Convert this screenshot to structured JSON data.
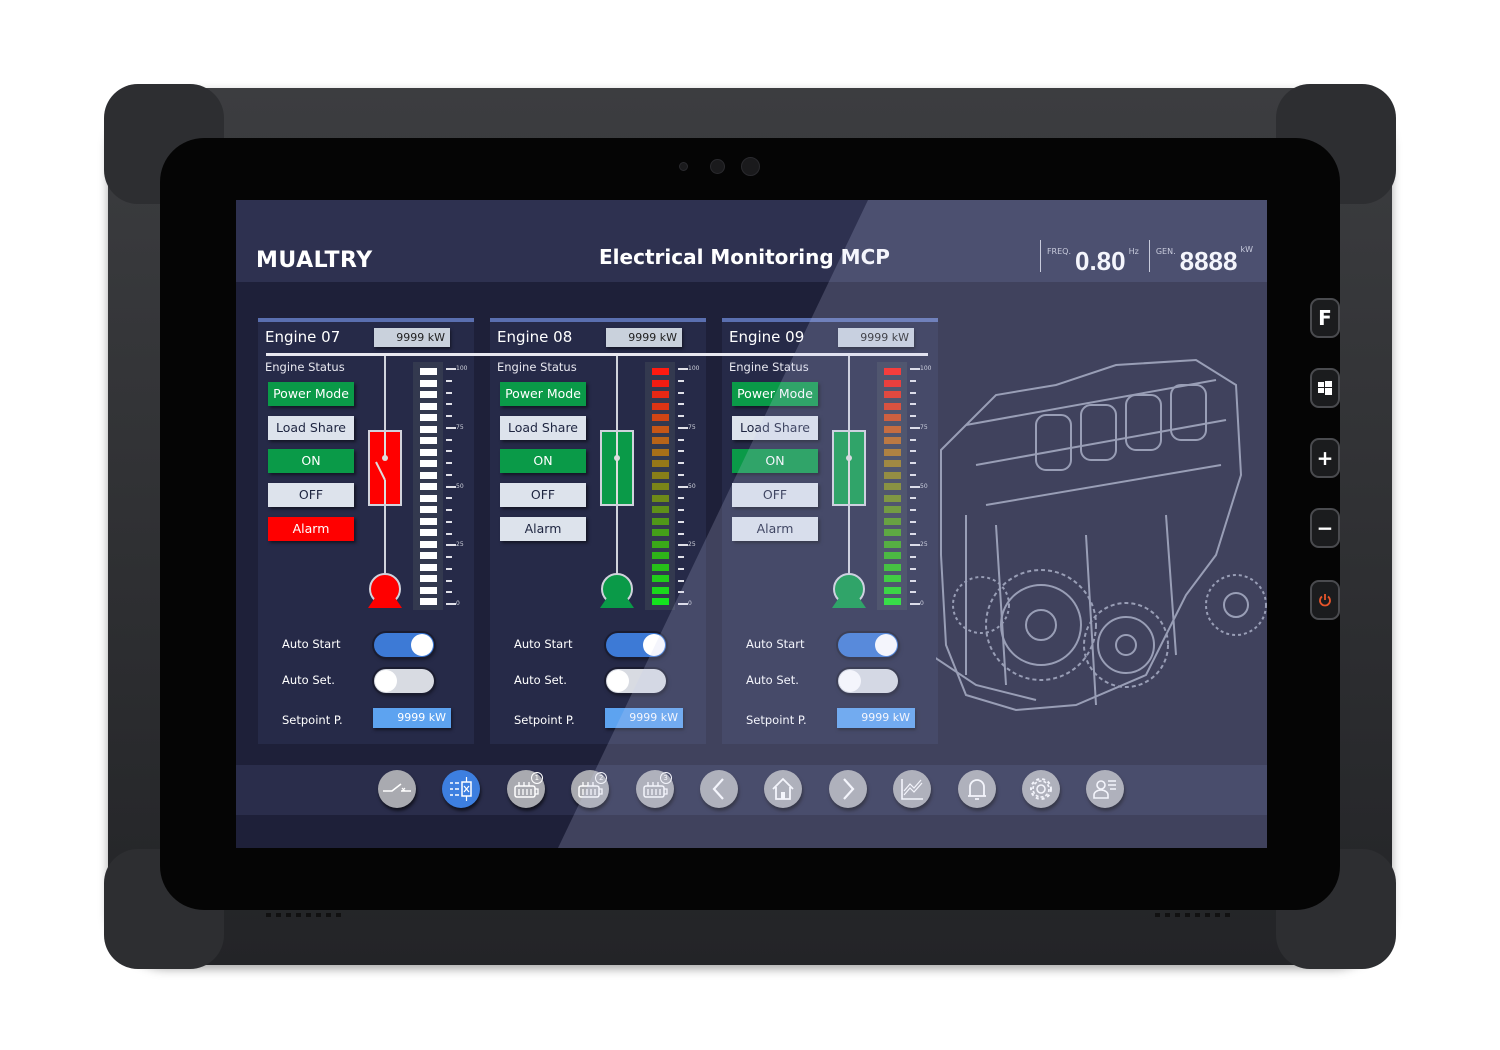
{
  "hardware": {
    "side_buttons": [
      {
        "name": "function",
        "label": "F"
      },
      {
        "name": "windows",
        "label": ""
      },
      {
        "name": "volume-up",
        "label": "+"
      },
      {
        "name": "volume-down",
        "label": "−"
      },
      {
        "name": "power",
        "label": ""
      }
    ],
    "power_color": "#e8552a"
  },
  "header": {
    "brand": "MUALTRY",
    "title": "Electrical Monitoring MCP",
    "freq_label": "FREQ.",
    "freq_value": "0.80",
    "freq_unit": "Hz",
    "gen_label": "GEN.",
    "gen_value": "8888",
    "gen_unit": "kW"
  },
  "engines": [
    {
      "name": "Engine 07",
      "power": "9999  kW",
      "status_label": "Engine Status",
      "buttons": [
        {
          "label": "Power Mode",
          "state": "active"
        },
        {
          "label": "Load Share",
          "state": "idle"
        },
        {
          "label": "ON",
          "state": "active"
        },
        {
          "label": "OFF",
          "state": "idle"
        },
        {
          "label": "Alarm",
          "state": "alarm"
        }
      ],
      "breaker": "open",
      "color": "#ff0000",
      "bar_style": "white",
      "auto_start_label": "Auto Start",
      "auto_start": true,
      "auto_set_label": "Auto Set.",
      "auto_set": false,
      "setpoint_label": "Setpoint P.",
      "setpoint": "9999  kW"
    },
    {
      "name": "Engine 08",
      "power": "9999  kW",
      "status_label": "Engine Status",
      "buttons": [
        {
          "label": "Power Mode",
          "state": "active"
        },
        {
          "label": "Load Share",
          "state": "idle"
        },
        {
          "label": "ON",
          "state": "active"
        },
        {
          "label": "OFF",
          "state": "idle"
        },
        {
          "label": "Alarm",
          "state": "idle"
        }
      ],
      "breaker": "closed",
      "color": "#0a9a48",
      "bar_style": "gradient",
      "auto_start_label": "Auto Start",
      "auto_start": true,
      "auto_set_label": "Auto Set.",
      "auto_set": false,
      "setpoint_label": "Setpoint P.",
      "setpoint": "9999  kW"
    },
    {
      "name": "Engine 09",
      "power": "9999  kW",
      "status_label": "Engine Status",
      "buttons": [
        {
          "label": "Power Mode",
          "state": "active"
        },
        {
          "label": "Load Share",
          "state": "idle"
        },
        {
          "label": "ON",
          "state": "active"
        },
        {
          "label": "OFF",
          "state": "idle"
        },
        {
          "label": "Alarm",
          "state": "idle"
        }
      ],
      "breaker": "closed",
      "color": "#0a9a48",
      "bar_style": "gradient",
      "auto_start_label": "Auto Start",
      "auto_start": true,
      "auto_set_label": "Auto Set.",
      "auto_set": false,
      "setpoint_label": "Setpoint P.",
      "setpoint": "9999  kW"
    }
  ],
  "scale_labels": [
    "100",
    "75",
    "50",
    "25",
    "0"
  ],
  "colors": {
    "active": "#0a9a48",
    "idle": "#dde3ec",
    "alarm": "#ff0000",
    "toggle_on": "#3d7ad6",
    "toggle_off": "#d8dbe2",
    "nav_active": "#3d7fe0"
  },
  "nav": [
    {
      "icon": "breaker-icon",
      "active": false,
      "badge": ""
    },
    {
      "icon": "engine-list-icon",
      "active": true,
      "badge": ""
    },
    {
      "icon": "engine-icon",
      "active": false,
      "badge": "1"
    },
    {
      "icon": "engine-icon",
      "active": false,
      "badge": "2"
    },
    {
      "icon": "engine-icon",
      "active": false,
      "badge": "3"
    },
    {
      "icon": "chevron-left-icon",
      "active": false,
      "badge": ""
    },
    {
      "icon": "home-icon",
      "active": false,
      "badge": ""
    },
    {
      "icon": "chevron-right-icon",
      "active": false,
      "badge": ""
    },
    {
      "icon": "chart-icon",
      "active": false,
      "badge": ""
    },
    {
      "icon": "bell-icon",
      "active": false,
      "badge": ""
    },
    {
      "icon": "gear-icon",
      "active": false,
      "badge": ""
    },
    {
      "icon": "user-list-icon",
      "active": false,
      "badge": ""
    }
  ]
}
